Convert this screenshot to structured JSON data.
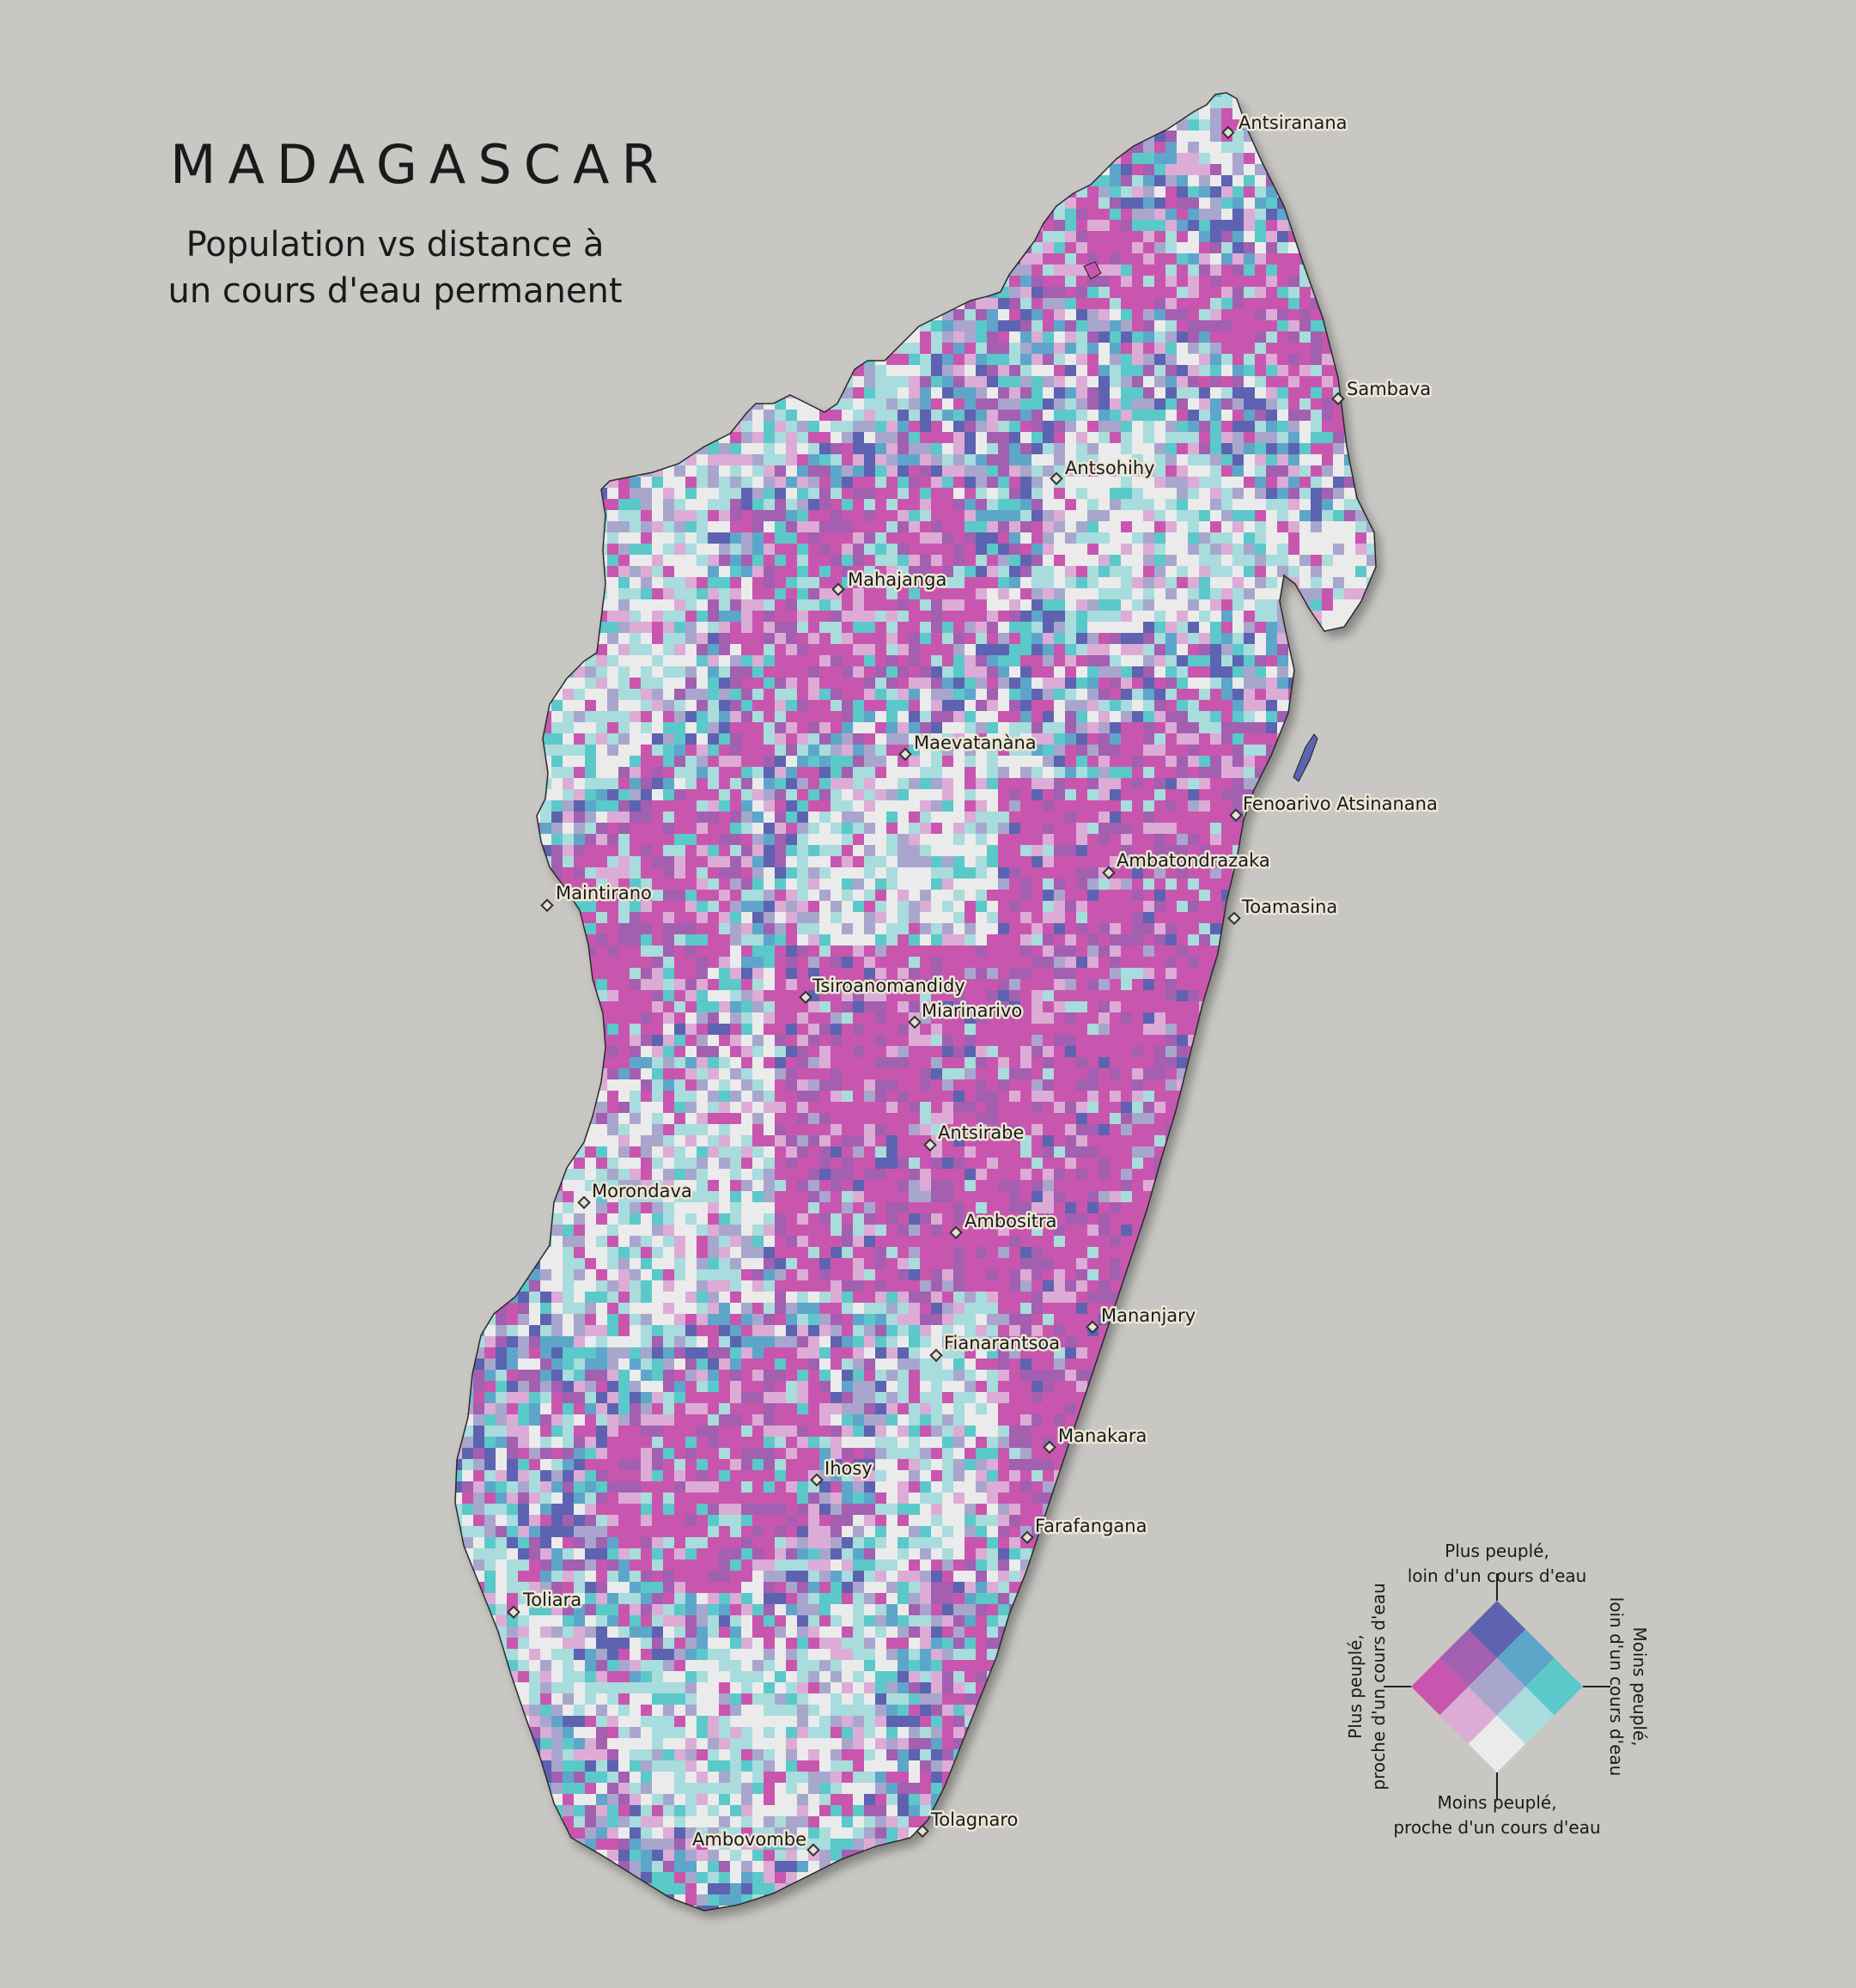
{
  "title": "MADAGASCAR",
  "subtitle_lines": [
    "Population vs distance à",
    "un cours d'eau permanent"
  ],
  "colors": {
    "background": "#c8c7c3",
    "bivariate": [
      "#ebebeb",
      "#a8dcdd",
      "#5bc8c9",
      "#dcacd6",
      "#a9a6cd",
      "#5da6ca",
      "#c956ae",
      "#a35fb0",
      "#5d63b0"
    ]
  },
  "cities": [
    {
      "name": "Antsiranana",
      "label": "Antsiranana"
    },
    {
      "name": "Sambava",
      "label": "Sambava"
    },
    {
      "name": "Antsohihy",
      "label": "Antsohihy"
    },
    {
      "name": "Mahajanga",
      "label": "Mahajanga"
    },
    {
      "name": "Maevatanana",
      "label": "Maevatanàna"
    },
    {
      "name": "Fenoarivo Atsinanana",
      "label": "Fenoarivo Atsinanana"
    },
    {
      "name": "Ambatondrazaka",
      "label": "Ambatondrazaka"
    },
    {
      "name": "Toamasina",
      "label": "Toamasina"
    },
    {
      "name": "Maintirano",
      "label": "Maintirano"
    },
    {
      "name": "Tsiroanomandidy",
      "label": "Tsiroanomandidy"
    },
    {
      "name": "Miarinarivo",
      "label": "Miarinarivo"
    },
    {
      "name": "Antsirabe",
      "label": "Antsirabe"
    },
    {
      "name": "Morondava",
      "label": "Morondava"
    },
    {
      "name": "Ambositra",
      "label": "Ambositra"
    },
    {
      "name": "Mananjary",
      "label": "Mananjary"
    },
    {
      "name": "Fianarantsoa",
      "label": "Fianarantsoa"
    },
    {
      "name": "Manakara",
      "label": "Manakara"
    },
    {
      "name": "Ihosy",
      "label": "Ihosy"
    },
    {
      "name": "Farafangana",
      "label": "Farafangana"
    },
    {
      "name": "Toliara",
      "label": "Toliara"
    },
    {
      "name": "Tolagnaro",
      "label": "Tolagnaro"
    },
    {
      "name": "Ambovombe",
      "label": "Ambovombe"
    }
  ],
  "legend": {
    "top": [
      "Plus peuplé,",
      "loin d'un cours d'eau"
    ],
    "right": [
      "Moins peuplé,",
      "loin d'un cours d'eau"
    ],
    "left": [
      "Plus peuplé,",
      "proche d'un cours d'eau"
    ],
    "bottom": [
      "Moins peuplé,",
      "proche d'un cours d'eau"
    ]
  }
}
